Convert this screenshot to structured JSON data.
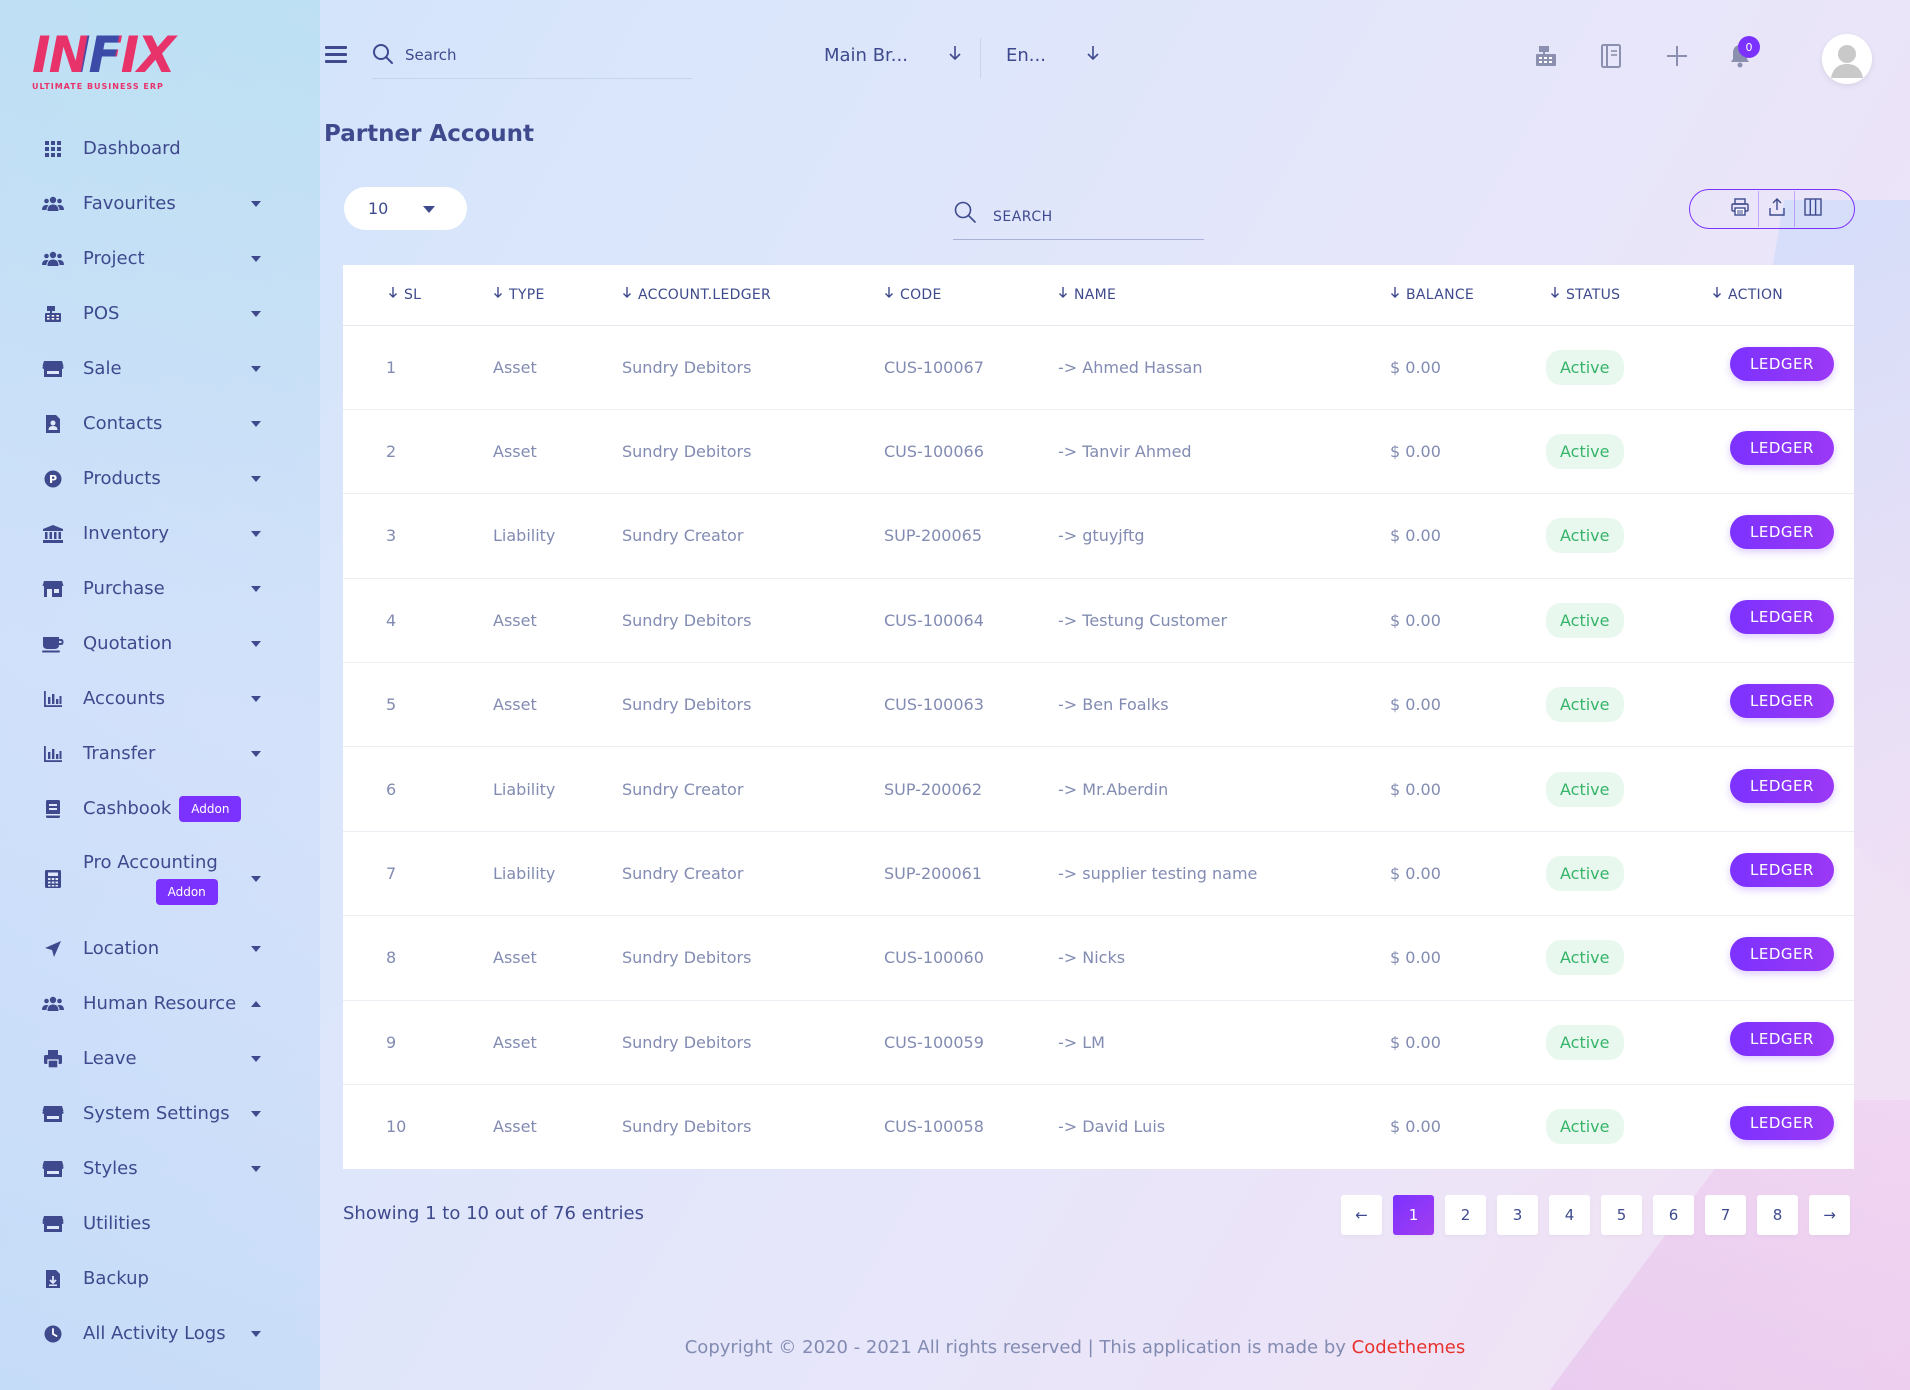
{
  "logo": {
    "text": "INFIX",
    "subtitle": "ULTIMATE BUSINESS ERP"
  },
  "sidebar": {
    "items": [
      {
        "label": "Dashboard",
        "icon": "grid-icon",
        "caret": "none"
      },
      {
        "label": "Favourites",
        "icon": "users-icon",
        "caret": "down"
      },
      {
        "label": "Project",
        "icon": "users-icon",
        "caret": "down"
      },
      {
        "label": "POS",
        "icon": "cash-register-icon",
        "caret": "down"
      },
      {
        "label": "Sale",
        "icon": "store-icon",
        "caret": "down"
      },
      {
        "label": "Contacts",
        "icon": "contacts-icon",
        "caret": "down"
      },
      {
        "label": "Products",
        "icon": "product-icon",
        "caret": "down"
      },
      {
        "label": "Inventory",
        "icon": "bank-icon",
        "caret": "down"
      },
      {
        "label": "Purchase",
        "icon": "shop-icon",
        "caret": "down"
      },
      {
        "label": "Quotation",
        "icon": "cup-icon",
        "caret": "down"
      },
      {
        "label": "Accounts",
        "icon": "bar-chart-icon",
        "caret": "down"
      },
      {
        "label": "Transfer",
        "icon": "bar-chart-icon",
        "caret": "down"
      },
      {
        "label": "Cashbook",
        "icon": "book-icon",
        "caret": "none",
        "badge": "Addon"
      },
      {
        "label": "Pro Accounting",
        "icon": "calculator-icon",
        "caret": "down",
        "badge": "Addon"
      },
      {
        "label": "Location",
        "icon": "location-arrow-icon",
        "caret": "down"
      },
      {
        "label": "Human Resource",
        "icon": "users-icon",
        "caret": "up"
      },
      {
        "label": "Leave",
        "icon": "printer-icon",
        "caret": "down"
      },
      {
        "label": "System Settings",
        "icon": "store-icon",
        "caret": "down"
      },
      {
        "label": "Styles",
        "icon": "store-icon",
        "caret": "down"
      },
      {
        "label": "Utilities",
        "icon": "store-icon",
        "caret": "none"
      },
      {
        "label": "Backup",
        "icon": "file-download-icon",
        "caret": "none"
      },
      {
        "label": "All Activity Logs",
        "icon": "clock-icon",
        "caret": "down"
      }
    ]
  },
  "topbar": {
    "search_placeholder": "Search",
    "branch": "Main Br...",
    "language": "En...",
    "notification_count": "0"
  },
  "page": {
    "title": "Partner Account"
  },
  "table_controls": {
    "page_length": "10",
    "search_placeholder": "SEARCH"
  },
  "table": {
    "columns": [
      "SL",
      "TYPE",
      "ACCOUNT.LEDGER",
      "CODE",
      "NAME",
      "BALANCE",
      "STATUS",
      "ACTION"
    ],
    "rows": [
      {
        "sl": "1",
        "type": "Asset",
        "ledger": "Sundry Debitors",
        "code": "CUS-100067",
        "name": "-> Ahmed Hassan",
        "balance": "$ 0.00",
        "status": "Active",
        "action": "LEDGER"
      },
      {
        "sl": "2",
        "type": "Asset",
        "ledger": "Sundry Debitors",
        "code": "CUS-100066",
        "name": "-> Tanvir Ahmed",
        "balance": "$ 0.00",
        "status": "Active",
        "action": "LEDGER"
      },
      {
        "sl": "3",
        "type": "Liability",
        "ledger": "Sundry Creator",
        "code": "SUP-200065",
        "name": "-> gtuyjftg",
        "balance": "$ 0.00",
        "status": "Active",
        "action": "LEDGER"
      },
      {
        "sl": "4",
        "type": "Asset",
        "ledger": "Sundry Debitors",
        "code": "CUS-100064",
        "name": "-> Testung Customer",
        "balance": "$ 0.00",
        "status": "Active",
        "action": "LEDGER"
      },
      {
        "sl": "5",
        "type": "Asset",
        "ledger": "Sundry Debitors",
        "code": "CUS-100063",
        "name": "-> Ben Foalks",
        "balance": "$ 0.00",
        "status": "Active",
        "action": "LEDGER"
      },
      {
        "sl": "6",
        "type": "Liability",
        "ledger": "Sundry Creator",
        "code": "SUP-200062",
        "name": "-> Mr.Aberdin",
        "balance": "$ 0.00",
        "status": "Active",
        "action": "LEDGER"
      },
      {
        "sl": "7",
        "type": "Liability",
        "ledger": "Sundry Creator",
        "code": "SUP-200061",
        "name": "-> supplier testing name",
        "balance": "$ 0.00",
        "status": "Active",
        "action": "LEDGER"
      },
      {
        "sl": "8",
        "type": "Asset",
        "ledger": "Sundry Debitors",
        "code": "CUS-100060",
        "name": "-> Nicks",
        "balance": "$ 0.00",
        "status": "Active",
        "action": "LEDGER"
      },
      {
        "sl": "9",
        "type": "Asset",
        "ledger": "Sundry Debitors",
        "code": "CUS-100059",
        "name": "-> LM",
        "balance": "$ 0.00",
        "status": "Active",
        "action": "LEDGER"
      },
      {
        "sl": "10",
        "type": "Asset",
        "ledger": "Sundry Debitors",
        "code": "CUS-100058",
        "name": "-> David Luis",
        "balance": "$ 0.00",
        "status": "Active",
        "action": "LEDGER"
      }
    ]
  },
  "pagination": {
    "summary": "Showing 1 to 10 out of 76 entries",
    "prev": "←",
    "next": "→",
    "pages": [
      "1",
      "2",
      "3",
      "4",
      "5",
      "6",
      "7",
      "8"
    ],
    "active": "1"
  },
  "footer": {
    "text": "Copyright © 2020 - 2021 All rights reserved | This application is made by ",
    "brand": "Codethemes"
  },
  "colors": {
    "accent": "#7c32ff",
    "text": "#415094",
    "muted": "#828bb2",
    "status_active_bg": "#e9f8ee",
    "status_active_text": "#35b469",
    "brand_red": "#e8322e"
  }
}
